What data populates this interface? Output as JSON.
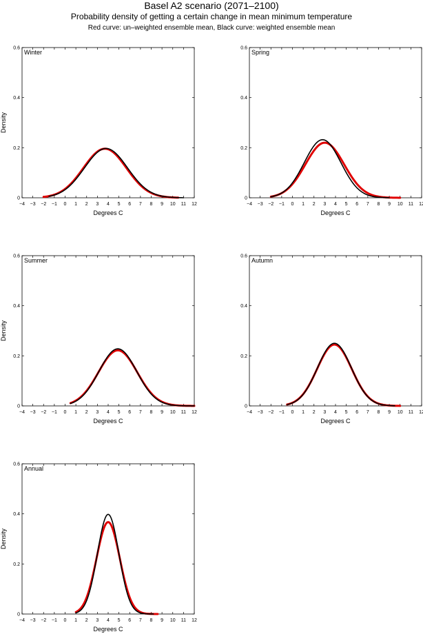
{
  "header": {
    "title": "Basel A2 scenario (2071–2100)",
    "subtitle": "Probability density of getting a certain change in mean minimum temperature",
    "caption": "Red curve: un–weighted ensemble mean, Black curve: weighted ensemble mean"
  },
  "colors": {
    "unweighted": "#e00000",
    "weighted": "#000000"
  },
  "chart_data": [
    {
      "type": "line",
      "panel_label": "Winter",
      "xlabel": "Degrees C",
      "ylabel": "Density",
      "xlim": [
        -4,
        12
      ],
      "ylim": [
        0,
        0.6
      ],
      "xticks": [
        -4,
        -3,
        -2,
        -1,
        0,
        1,
        2,
        3,
        4,
        5,
        6,
        7,
        8,
        9,
        10,
        11,
        12
      ],
      "xtick_labels": [
        "−4",
        "−3",
        "−2",
        "−1",
        "0",
        "1",
        "2",
        "3",
        "4",
        "5",
        "6",
        "7",
        "8",
        "9",
        "10",
        "11",
        "12"
      ],
      "yticks": [
        0,
        0.2,
        0.4,
        0.6
      ],
      "ytick_labels": [
        "0",
        "0.2",
        "0.4",
        "0.6"
      ],
      "series": [
        {
          "style": "unweighted",
          "curve": {
            "peak_x": 3.7,
            "peak_y": 0.196,
            "sd": 2.0,
            "x_range": [
              -2.0,
              10.5
            ]
          }
        },
        {
          "style": "weighted",
          "curve": {
            "peak_x": 3.8,
            "peak_y": 0.197,
            "sd": 2.0,
            "x_range": [
              -1.5,
              11.0
            ]
          }
        }
      ]
    },
    {
      "type": "line",
      "panel_label": "Spring",
      "xlabel": "Degrees C",
      "ylabel": "",
      "xlim": [
        -4,
        12
      ],
      "ylim": [
        0,
        0.6
      ],
      "xticks": [
        -4,
        -3,
        -2,
        -1,
        0,
        1,
        2,
        3,
        4,
        5,
        6,
        7,
        8,
        9,
        10,
        11,
        12
      ],
      "xtick_labels": [
        "−4",
        "−3",
        "−2",
        "−1",
        "0",
        "1",
        "2",
        "3",
        "4",
        "5",
        "6",
        "7",
        "8",
        "9",
        "10",
        "11",
        "12"
      ],
      "yticks": [
        0,
        0.2,
        0.4,
        0.6
      ],
      "ytick_labels": [
        "0",
        "0.2",
        "0.4",
        "0.6"
      ],
      "series": [
        {
          "style": "unweighted",
          "curve": {
            "peak_x": 3.0,
            "peak_y": 0.22,
            "sd": 1.8,
            "x_range": [
              -2.0,
              10.0
            ]
          }
        },
        {
          "style": "weighted",
          "curve": {
            "peak_x": 2.8,
            "peak_y": 0.232,
            "sd": 1.7,
            "x_range": [
              -2.0,
              9.0
            ]
          }
        }
      ]
    },
    {
      "type": "line",
      "panel_label": "Summer",
      "xlabel": "Degrees C",
      "ylabel": "Density",
      "xlim": [
        -4,
        12
      ],
      "ylim": [
        0,
        0.6
      ],
      "xticks": [
        -4,
        -3,
        -2,
        -1,
        0,
        1,
        2,
        3,
        4,
        5,
        6,
        7,
        8,
        9,
        10,
        11,
        12
      ],
      "xtick_labels": [
        "−4",
        "−3",
        "−2",
        "−1",
        "0",
        "1",
        "2",
        "3",
        "4",
        "5",
        "6",
        "7",
        "8",
        "9",
        "10",
        "11",
        "12"
      ],
      "yticks": [
        0,
        0.2,
        0.4,
        0.6
      ],
      "ytick_labels": [
        "0",
        "0.2",
        "0.4",
        "0.6"
      ],
      "series": [
        {
          "style": "unweighted",
          "curve": {
            "peak_x": 4.9,
            "peak_y": 0.222,
            "sd": 1.8,
            "x_range": [
              0.5,
              12.0
            ]
          }
        },
        {
          "style": "weighted",
          "curve": {
            "peak_x": 4.9,
            "peak_y": 0.228,
            "sd": 1.75,
            "x_range": [
              0.5,
              12.0
            ]
          }
        }
      ]
    },
    {
      "type": "line",
      "panel_label": "Autumn",
      "xlabel": "Degrees C",
      "ylabel": "",
      "xlim": [
        -4,
        12
      ],
      "ylim": [
        0,
        0.6
      ],
      "xticks": [
        -4,
        -3,
        -2,
        -1,
        0,
        1,
        2,
        3,
        4,
        5,
        6,
        7,
        8,
        9,
        10,
        11,
        12
      ],
      "xtick_labels": [
        "−4",
        "−3",
        "−2",
        "−1",
        "0",
        "1",
        "2",
        "3",
        "4",
        "5",
        "6",
        "7",
        "8",
        "9",
        "10",
        "11",
        "12"
      ],
      "yticks": [
        0,
        0.2,
        0.4,
        0.6
      ],
      "ytick_labels": [
        "0",
        "0.2",
        "0.4",
        "0.6"
      ],
      "series": [
        {
          "style": "unweighted",
          "curve": {
            "peak_x": 3.9,
            "peak_y": 0.245,
            "sd": 1.6,
            "x_range": [
              -0.5,
              10.0
            ]
          }
        },
        {
          "style": "weighted",
          "curve": {
            "peak_x": 3.9,
            "peak_y": 0.25,
            "sd": 1.58,
            "x_range": [
              -0.5,
              9.5
            ]
          }
        }
      ]
    },
    {
      "type": "line",
      "panel_label": "Annual",
      "xlabel": "Degrees C",
      "ylabel": "Density",
      "xlim": [
        -4,
        12
      ],
      "ylim": [
        0,
        0.6
      ],
      "xticks": [
        -4,
        -3,
        -2,
        -1,
        0,
        1,
        2,
        3,
        4,
        5,
        6,
        7,
        8,
        9,
        10,
        11,
        12
      ],
      "xtick_labels": [
        "−4",
        "−3",
        "−2",
        "−1",
        "0",
        "1",
        "2",
        "3",
        "4",
        "5",
        "6",
        "7",
        "8",
        "9",
        "10",
        "11",
        "12"
      ],
      "yticks": [
        0,
        0.2,
        0.4,
        0.6
      ],
      "ytick_labels": [
        "0",
        "0.2",
        "0.4",
        "0.6"
      ],
      "series": [
        {
          "style": "unweighted",
          "curve": {
            "peak_x": 4.0,
            "peak_y": 0.367,
            "sd": 1.08,
            "x_range": [
              1.0,
              8.6
            ]
          }
        },
        {
          "style": "weighted",
          "curve": {
            "peak_x": 4.0,
            "peak_y": 0.398,
            "sd": 1.0,
            "x_range": [
              1.0,
              8.2
            ]
          }
        }
      ]
    }
  ]
}
